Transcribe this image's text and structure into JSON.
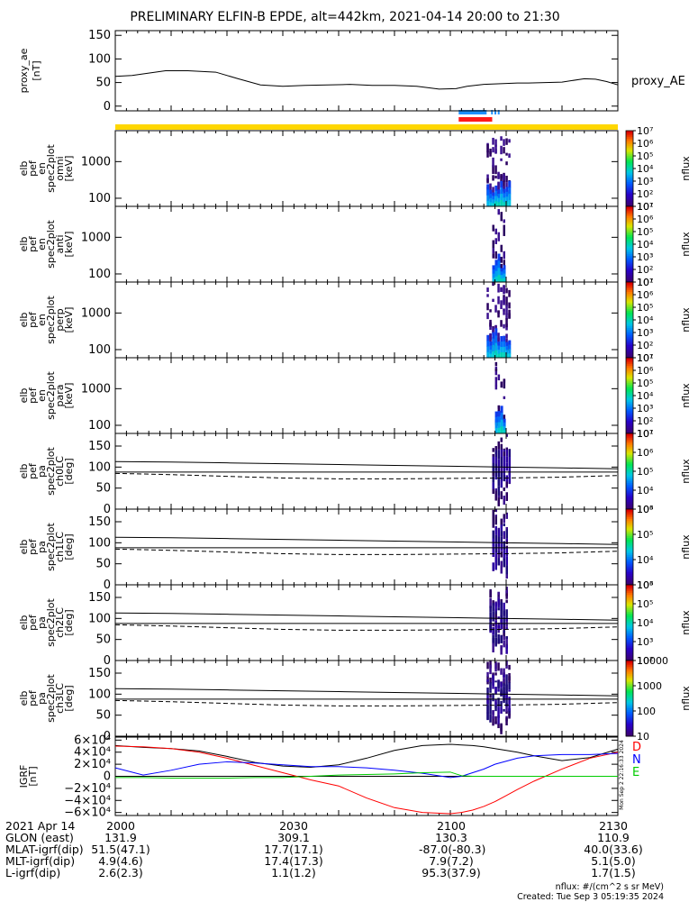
{
  "title": "PRELIMINARY ELFIN-B EPDE, alt=442km, 2021-04-14 20:00 to 21:30",
  "colors": {
    "state_bar": "#ffd700",
    "sci_bar_blue": "#1e90ff",
    "sci_bar_red": "#ff1a1a",
    "igrf_D": "#ff0000",
    "igrf_N": "#0000ff",
    "igrf_E": "#00cc00"
  },
  "chart_data": [
    {
      "type": "line",
      "panel": "proxy_ae",
      "ylabel": [
        "proxy_ae",
        "[nT]"
      ],
      "yticks": [
        "150",
        "100",
        "50",
        "0"
      ],
      "ylim": [
        -10,
        160
      ],
      "series_label": "proxy_AE",
      "x_minutes": [
        0,
        3,
        6,
        9,
        13,
        18,
        22,
        26,
        30,
        34,
        38,
        42,
        46,
        50,
        54,
        58,
        61,
        63,
        66,
        68,
        70,
        72,
        74,
        77,
        80,
        84,
        86,
        88,
        90
      ],
      "values": [
        63,
        65,
        70,
        75,
        75,
        72,
        58,
        45,
        42,
        44,
        45,
        46,
        44,
        44,
        42,
        36,
        37,
        42,
        46,
        47,
        48,
        49,
        49,
        50,
        51,
        58,
        57,
        52,
        45
      ]
    },
    {
      "type": "heatmap",
      "panel": "omni",
      "ylabel": [
        "elb",
        "pef",
        "en",
        "spec2plot",
        "omni",
        "[keV]"
      ],
      "yticks": [
        "1000",
        "100"
      ],
      "yscale": "log",
      "ylim": [
        60,
        7000
      ],
      "colorbar": {
        "label": "nflux",
        "ticks": [
          "10¹",
          "10²",
          "10³",
          "10⁴",
          "10⁵",
          "10⁶",
          "10⁷"
        ]
      },
      "active_interval_min": [
        66.5,
        71
      ]
    },
    {
      "type": "heatmap",
      "panel": "anti",
      "ylabel": [
        "elb",
        "pef",
        "en",
        "spec2plot",
        "anti",
        "[keV]"
      ],
      "yticks": [
        "1000",
        "100"
      ],
      "yscale": "log",
      "ylim": [
        60,
        7000
      ],
      "colorbar": {
        "label": "nflux",
        "ticks": [
          "10¹",
          "10²",
          "10³",
          "10⁴",
          "10⁵",
          "10⁶",
          "10⁷"
        ]
      },
      "active_interval_min": [
        67.5,
        70
      ]
    },
    {
      "type": "heatmap",
      "panel": "perp",
      "ylabel": [
        "elb",
        "pef",
        "en",
        "spec2plot",
        "perp",
        "[keV]"
      ],
      "yticks": [
        "1000",
        "100"
      ],
      "yscale": "log",
      "ylim": [
        60,
        7000
      ],
      "colorbar": {
        "label": "nflux",
        "ticks": [
          "10¹",
          "10²",
          "10³",
          "10⁴",
          "10⁵",
          "10⁶",
          "10⁷"
        ]
      },
      "active_interval_min": [
        66.5,
        71
      ]
    },
    {
      "type": "heatmap",
      "panel": "para",
      "ylabel": [
        "elb",
        "pef",
        "en",
        "spec2plot",
        "para",
        "[keV]"
      ],
      "yticks": [
        "1000",
        "100"
      ],
      "yscale": "log",
      "ylim": [
        60,
        7000
      ],
      "colorbar": {
        "label": "nflux",
        "ticks": [
          "10¹",
          "10²",
          "10³",
          "10⁴",
          "10⁵",
          "10⁶",
          "10⁷"
        ]
      },
      "active_interval_min": [
        68,
        70
      ]
    },
    {
      "type": "heatmap",
      "panel": "ch0LC",
      "ylabel": [
        "elb",
        "pef",
        "pa",
        "spec2plot",
        "ch0LC",
        "[deg]"
      ],
      "yticks": [
        "150",
        "100",
        "50",
        "0"
      ],
      "ylim": [
        0,
        180
      ],
      "lines": {
        "lc_solid": [
          113,
          112,
          110,
          108,
          106,
          104,
          102,
          100,
          98,
          96
        ],
        "antilc_solid": [
          88
        ],
        "lc_dashed": [
          85,
          82,
          78,
          74,
          72,
          72,
          73,
          74,
          76,
          80
        ]
      },
      "colorbar": {
        "label": "nflux",
        "ticks": [
          "10³",
          "10⁴",
          "10⁵",
          "10⁶",
          "10⁷"
        ]
      },
      "active_interval_min": [
        67.5,
        71
      ]
    },
    {
      "type": "heatmap",
      "panel": "ch1LC",
      "ylabel": [
        "elb",
        "pef",
        "pa",
        "spec2plot",
        "ch1LC",
        "[deg]"
      ],
      "yticks": [
        "150",
        "100",
        "50",
        "0"
      ],
      "ylim": [
        0,
        180
      ],
      "lines": {
        "lc_solid": [
          113,
          112,
          110,
          108,
          106,
          104,
          102,
          100,
          98,
          96
        ],
        "antilc_solid": [
          88
        ],
        "lc_dashed": [
          85,
          82,
          78,
          74,
          72,
          72,
          73,
          74,
          76,
          80
        ]
      },
      "colorbar": {
        "label": "nflux",
        "ticks": [
          "10³",
          "10⁴",
          "10⁵",
          "10⁶"
        ]
      },
      "active_interval_min": [
        67.5,
        70.5
      ]
    },
    {
      "type": "heatmap",
      "panel": "ch2LC",
      "ylabel": [
        "elb",
        "pef",
        "pa",
        "spec2plot",
        "ch2LC",
        "[deg]"
      ],
      "yticks": [
        "150",
        "100",
        "50",
        "0"
      ],
      "ylim": [
        0,
        180
      ],
      "lines": {
        "lc_solid": [
          113,
          112,
          110,
          108,
          106,
          104,
          102,
          100,
          98,
          96
        ],
        "antilc_solid": [
          88
        ],
        "lc_dashed": [
          85,
          82,
          78,
          74,
          72,
          72,
          73,
          74,
          76,
          80
        ]
      },
      "colorbar": {
        "label": "nflux",
        "ticks": [
          "10²",
          "10³",
          "10⁴",
          "10⁵",
          "10⁶"
        ]
      },
      "active_interval_min": [
        67,
        70.5
      ]
    },
    {
      "type": "heatmap",
      "panel": "ch3LC",
      "ylabel": [
        "elb",
        "pef",
        "pa",
        "spec2plot",
        "ch3LC",
        "[deg]"
      ],
      "yticks": [
        "150",
        "100",
        "50",
        "0"
      ],
      "ylim": [
        0,
        180
      ],
      "lines": {
        "lc_solid": [
          113,
          112,
          110,
          108,
          106,
          104,
          102,
          100,
          98,
          96
        ],
        "antilc_solid": [
          88
        ],
        "lc_dashed": [
          85,
          82,
          78,
          74,
          72,
          72,
          73,
          74,
          76,
          80
        ]
      },
      "colorbar": {
        "label": "nflux",
        "ticks": [
          "10",
          "100",
          "1000",
          "10000"
        ]
      },
      "active_interval_min": [
        66.5,
        71
      ]
    },
    {
      "type": "line",
      "panel": "IGRF",
      "ylabel": [
        "IGRF",
        "[nT]"
      ],
      "yticks": [
        "6×10⁴",
        "4×10⁴",
        "2×10⁴",
        "0",
        "−2×10⁴",
        "−4×10⁴",
        "−6×10⁴"
      ],
      "ylim": [
        -65000,
        65000
      ],
      "legend": [
        "D",
        "N",
        "E"
      ],
      "side_note": "Mon Sep 2 22:16:33 2024",
      "x_minutes": [
        0,
        5,
        10,
        15,
        20,
        25,
        30,
        35,
        40,
        45,
        50,
        55,
        60,
        62,
        64,
        66,
        68,
        70,
        72,
        75,
        80,
        85,
        90
      ],
      "series": [
        {
          "name": "total",
          "values": [
            51000,
            48000,
            46000,
            42000,
            33000,
            23000,
            17000,
            15000,
            19000,
            30000,
            43000,
            51000,
            53000,
            52000,
            51000,
            49000,
            46000,
            43000,
            40000,
            34000,
            26000,
            31000,
            45000
          ]
        },
        {
          "name": "D",
          "values": [
            50000,
            49000,
            46000,
            40000,
            30000,
            18000,
            6000,
            -6000,
            -16000,
            -36000,
            -52000,
            -60000,
            -62000,
            -60000,
            -56000,
            -50000,
            -42000,
            -32000,
            -22000,
            -8000,
            12000,
            30000,
            40000
          ]
        },
        {
          "name": "N",
          "values": [
            14000,
            2000,
            10000,
            20000,
            24000,
            22000,
            19000,
            16000,
            16000,
            14000,
            10000,
            5000,
            -2000,
            0,
            6000,
            12000,
            20000,
            25000,
            30000,
            34000,
            36000,
            36000,
            38000
          ]
        },
        {
          "name": "E",
          "values": [
            -2000,
            -2000,
            -3000,
            -3000,
            -3000,
            -2000,
            -2000,
            0,
            2000,
            3000,
            4000,
            6000,
            7000,
            1000,
            0,
            0,
            0,
            0,
            0,
            0,
            0,
            0,
            0
          ]
        }
      ]
    }
  ],
  "x_axis": {
    "date_label": "2021 Apr 14",
    "ticks": [
      "2000",
      "2030",
      "2100",
      "2130"
    ],
    "rows": [
      {
        "label": "GLON (east)",
        "values": [
          "131.9",
          "309.1",
          "130.3",
          "110.9"
        ]
      },
      {
        "label": "MLAT-igrf(dip)",
        "values": [
          "51.5(47.1)",
          "17.7(17.1)",
          "-87.0(-80.3)",
          "40.0(33.6)"
        ]
      },
      {
        "label": "MLT-igrf(dip)",
        "values": [
          "4.9(4.6)",
          "17.4(17.3)",
          "7.9(7.2)",
          "5.1(5.0)"
        ]
      },
      {
        "label": "L-igrf(dip)",
        "values": [
          "2.6(2.3)",
          "1.1(1.2)",
          "95.3(37.9)",
          "1.7(1.5)"
        ]
      }
    ]
  },
  "footer": {
    "units": "nflux: #/(cm^2 s sr MeV)",
    "created": "Created: Tue Sep  3 05:19:35 2024"
  }
}
